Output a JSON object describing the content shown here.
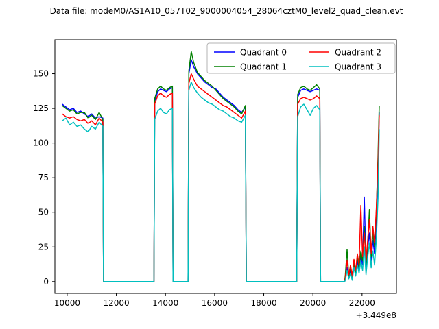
{
  "title": "Data file: modeM0/AS1A10_057T02_9000004054_28064cztM0_level2_quad_clean.evt",
  "chart_data": {
    "type": "line",
    "title": "Data file: modeM0/AS1A10_057T02_9000004054_28064cztM0_level2_quad_clean.evt",
    "xlabel": "",
    "ylabel": "",
    "x_offset_label": "+3.449e8",
    "xlim": [
      9500,
      23400
    ],
    "ylim": [
      -8.5,
      174.5
    ],
    "xticks": [
      10000,
      12000,
      14000,
      16000,
      18000,
      20000,
      22000
    ],
    "yticks": [
      0,
      25,
      50,
      75,
      100,
      125,
      150
    ],
    "grid": false,
    "legend": {
      "position": "upper-center",
      "columns": 2
    },
    "x": [
      9800,
      9950,
      10100,
      10250,
      10400,
      10550,
      10700,
      10850,
      11000,
      11150,
      11300,
      11450,
      11480,
      13530,
      13560,
      13680,
      13800,
      13920,
      14040,
      14160,
      14280,
      14310,
      14920,
      14950,
      15050,
      15150,
      15300,
      15450,
      15600,
      15750,
      15900,
      16050,
      16200,
      16350,
      16500,
      16650,
      16800,
      16950,
      17100,
      17250,
      17290,
      19340,
      19380,
      19500,
      19630,
      19760,
      19890,
      20020,
      20150,
      20280,
      20310,
      21290,
      21320,
      21390,
      21460,
      21530,
      21600,
      21670,
      21740,
      21810,
      21880,
      21950,
      22020,
      22090,
      22160,
      22230,
      22300,
      22370,
      22440,
      22510,
      22580,
      22650,
      22700
    ],
    "series": [
      {
        "name": "Quadrant 0",
        "color": "#0000ff",
        "values": [
          128,
          126,
          124,
          125,
          122,
          123,
          121,
          119,
          121,
          118,
          119,
          118,
          0,
          0,
          130,
          137,
          139,
          138,
          137,
          139,
          140,
          0,
          0,
          150,
          160,
          155,
          150,
          147,
          144,
          142,
          140,
          139,
          136,
          133,
          131,
          129,
          127,
          124,
          122,
          126,
          0,
          0,
          133,
          138,
          139,
          138,
          137,
          138,
          139,
          138,
          0,
          0,
          2,
          10,
          3,
          8,
          2,
          12,
          5,
          15,
          8,
          20,
          12,
          61,
          10,
          25,
          35,
          15,
          30,
          20,
          45,
          80,
          122
        ]
      },
      {
        "name": "Quadrant 1",
        "color": "#008000",
        "values": [
          127,
          125,
          123,
          124,
          121,
          122,
          122,
          118,
          120,
          117,
          122,
          117,
          0,
          0,
          132,
          139,
          141,
          139,
          138,
          140,
          141,
          0,
          0,
          152,
          166,
          158,
          151,
          148,
          145,
          143,
          141,
          138,
          135,
          132,
          130,
          128,
          126,
          123,
          121,
          127,
          0,
          0,
          135,
          140,
          141,
          139,
          138,
          140,
          142,
          139,
          0,
          0,
          5,
          23,
          4,
          10,
          3,
          14,
          6,
          18,
          10,
          22,
          15,
          40,
          12,
          28,
          52,
          18,
          35,
          25,
          50,
          90,
          127
        ]
      },
      {
        "name": "Quadrant 2",
        "color": "#ff0000",
        "values": [
          121,
          119,
          118,
          119,
          117,
          116,
          117,
          114,
          116,
          113,
          118,
          115,
          0,
          0,
          128,
          134,
          136,
          134,
          133,
          135,
          136,
          0,
          0,
          143,
          150,
          146,
          141,
          139,
          137,
          135,
          133,
          131,
          129,
          127,
          126,
          124,
          122,
          120,
          118,
          123,
          0,
          0,
          128,
          132,
          133,
          132,
          131,
          132,
          134,
          132,
          0,
          0,
          3,
          15,
          5,
          12,
          4,
          16,
          8,
          20,
          12,
          55,
          18,
          35,
          15,
          30,
          45,
          20,
          40,
          28,
          52,
          85,
          120
        ]
      },
      {
        "name": "Quadrant 3",
        "color": "#00bfbf",
        "values": [
          116,
          118,
          113,
          115,
          112,
          113,
          110,
          108,
          112,
          110,
          115,
          112,
          0,
          0,
          117,
          123,
          125,
          122,
          121,
          124,
          125,
          0,
          0,
          138,
          144,
          140,
          136,
          133,
          131,
          129,
          128,
          126,
          124,
          123,
          121,
          119,
          118,
          116,
          115,
          120,
          0,
          0,
          119,
          126,
          128,
          124,
          120,
          125,
          127,
          124,
          0,
          0,
          1,
          8,
          2,
          6,
          1,
          10,
          4,
          12,
          6,
          15,
          8,
          25,
          5,
          18,
          28,
          10,
          22,
          12,
          30,
          60,
          110
        ]
      }
    ]
  }
}
